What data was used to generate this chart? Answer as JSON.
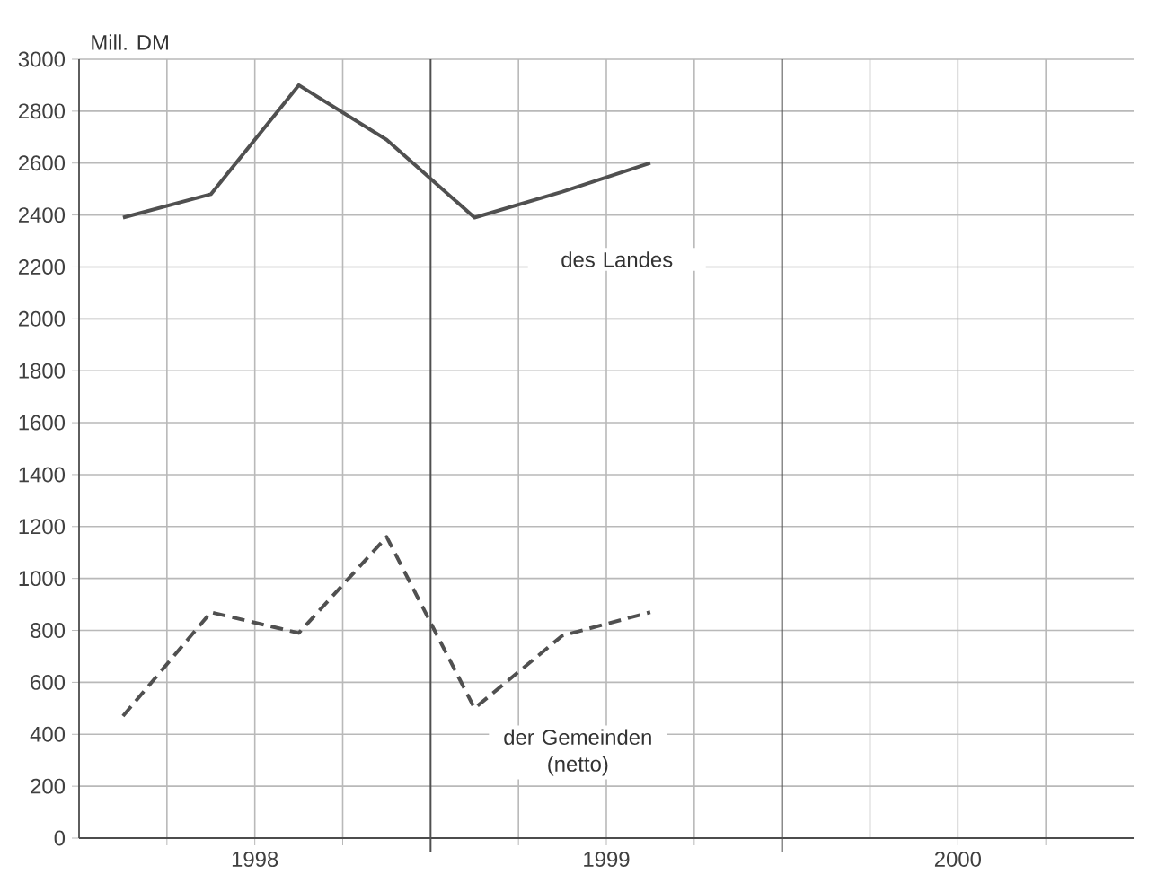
{
  "chart_data": {
    "type": "line",
    "ylabel": "Mill. DM",
    "x": [
      1998.125,
      1998.375,
      1998.625,
      1998.875,
      1999.125,
      1999.375,
      1999.625
    ],
    "series": [
      {
        "color": "#505050",
        "line_style": "solid",
        "values": [
          2390,
          2480,
          2900,
          2690,
          2390,
          2490,
          2600
        ]
      },
      {
        "color": "#505050",
        "line_style": "dashed",
        "values": [
          470,
          870,
          790,
          1160,
          500,
          780,
          870
        ]
      }
    ],
    "xlim": [
      1998,
      2001
    ],
    "ylim": [
      0,
      3000
    ],
    "xticks": [
      {
        "value": 1998.25,
        "label": null
      },
      {
        "value": 1998.5,
        "label": "1998"
      },
      {
        "value": 1998.75,
        "label": null
      },
      {
        "value": 1999.25,
        "label": null
      },
      {
        "value": 1999.5,
        "label": "1999"
      },
      {
        "value": 1999.75,
        "label": null
      },
      {
        "value": 2000.25,
        "label": null
      },
      {
        "value": 2000.5,
        "label": "2000"
      },
      {
        "value": 2000.75,
        "label": null
      }
    ],
    "yticks": [
      0,
      200,
      400,
      600,
      800,
      1000,
      1200,
      1400,
      1600,
      1800,
      2000,
      2200,
      2400,
      2600,
      2800,
      3000
    ],
    "grid": true,
    "ref_lines": [
      {
        "axis": "x",
        "value": 1999,
        "color": "#505050"
      },
      {
        "axis": "x",
        "value": 2000,
        "color": "#505050"
      }
    ],
    "annotations": [
      "des Landes",
      "der Gemeinden (netto)"
    ]
  }
}
